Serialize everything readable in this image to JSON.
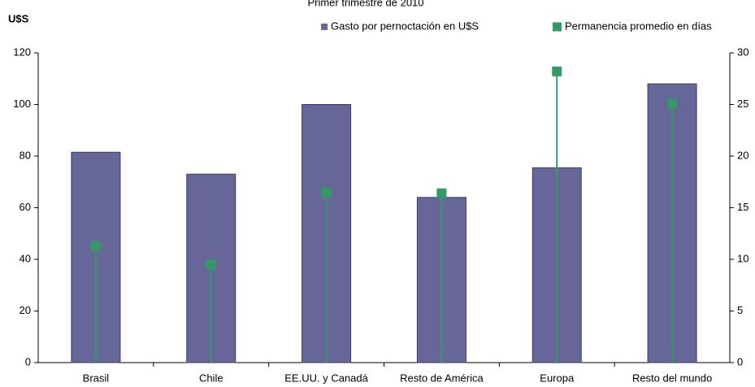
{
  "chart_data": {
    "type": "bar",
    "title": "Primer trimestre de 2010",
    "y_label": "U$S",
    "categories": [
      "Brasil",
      "Chile",
      "EE.UU. y Canadá",
      "Resto de América",
      "Europa",
      "Resto del mundo"
    ],
    "series": [
      {
        "name": "Gasto por pernoctación en U$S",
        "type": "bar",
        "color": "#666699",
        "values": [
          81.5,
          73,
          100,
          64,
          75.5,
          108
        ]
      },
      {
        "name": "Permanencia promedio en días",
        "type": "lollipop",
        "axis": "y2",
        "color": "#339966",
        "values": [
          11.3,
          9.5,
          16.5,
          16.4,
          28.2,
          25.1
        ]
      }
    ],
    "ylim": [
      0,
      120
    ],
    "yticks": [
      0,
      20,
      40,
      60,
      80,
      100,
      120
    ],
    "y2lim": [
      0,
      30
    ],
    "y2ticks": [
      0,
      5,
      10,
      15,
      20,
      25,
      30
    ]
  }
}
